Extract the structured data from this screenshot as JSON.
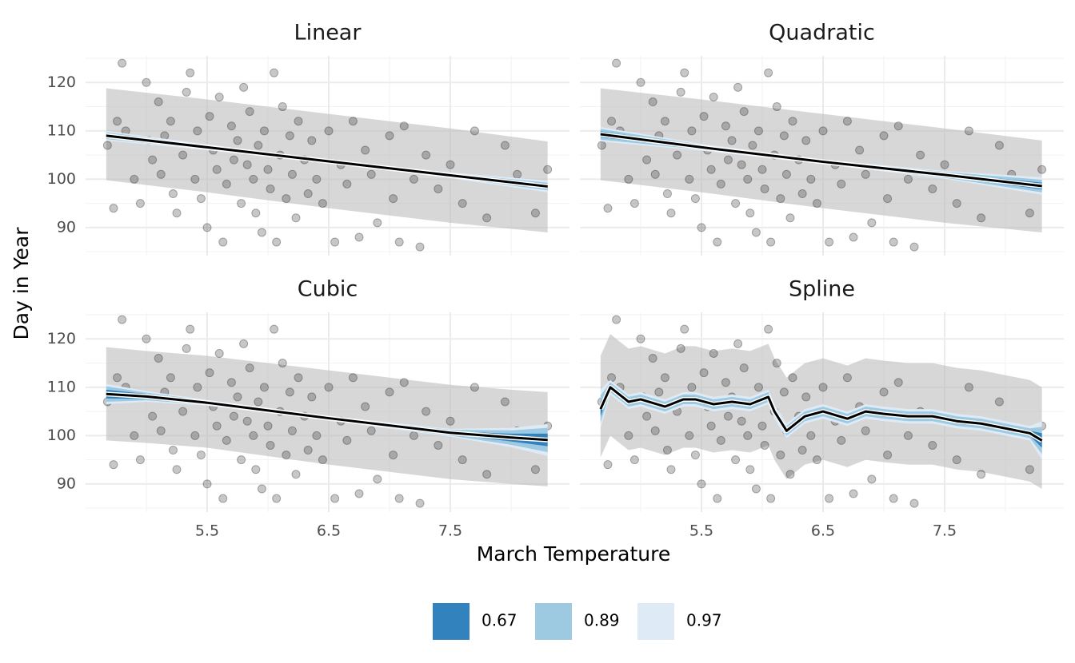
{
  "chart_data": {
    "type": "faceted-regression",
    "x_label": "March Temperature",
    "y_label": "Day in Year",
    "xlim": [
      4.5,
      8.48
    ],
    "ylim": [
      84.2,
      125.5
    ],
    "xticks": [
      5.5,
      6.5,
      7.5
    ],
    "yticks": [
      90,
      100,
      110,
      120
    ],
    "xminor": [
      5,
      6,
      7,
      8
    ],
    "yminor": [
      85,
      95,
      105,
      115,
      125
    ],
    "grid": true,
    "point_color": "#000000",
    "pred_color": "#bdbdbd",
    "line_color": "#000000",
    "bands": [
      {
        "name": "0.67",
        "color": "#3182bd"
      },
      {
        "name": "0.89",
        "color": "#9ecae1"
      },
      {
        "name": "0.97",
        "color": "#deebf7"
      }
    ],
    "points": {
      "x": [
        4.68,
        4.73,
        4.76,
        4.8,
        4.83,
        4.9,
        4.95,
        5.0,
        5.02,
        5.05,
        5.1,
        5.12,
        5.15,
        5.2,
        5.22,
        5.25,
        5.3,
        5.33,
        5.36,
        5.4,
        5.42,
        5.45,
        5.5,
        5.52,
        5.55,
        5.58,
        5.6,
        5.63,
        5.66,
        5.7,
        5.72,
        5.75,
        5.78,
        5.8,
        5.83,
        5.85,
        5.88,
        5.9,
        5.92,
        5.95,
        5.97,
        6.0,
        6.02,
        6.05,
        6.07,
        6.1,
        6.12,
        6.15,
        6.18,
        6.2,
        6.23,
        6.25,
        6.3,
        6.33,
        6.36,
        6.4,
        6.45,
        6.5,
        6.55,
        6.6,
        6.65,
        6.7,
        6.75,
        6.8,
        6.85,
        6.9,
        7.0,
        7.03,
        7.08,
        7.12,
        7.2,
        7.25,
        7.3,
        7.4,
        7.5,
        7.6,
        7.7,
        7.8,
        7.95,
        8.05,
        8.2,
        8.3
      ],
      "y": [
        107,
        94,
        112,
        124,
        110,
        100,
        95,
        120,
        108,
        104,
        116,
        101,
        109,
        112,
        97,
        93,
        105,
        118,
        122,
        100,
        110,
        96,
        90,
        113,
        106,
        102,
        117,
        87,
        99,
        111,
        104,
        108,
        95,
        119,
        103,
        114,
        100,
        93,
        107,
        89,
        110,
        102,
        98,
        122,
        87,
        105,
        115,
        96,
        109,
        101,
        92,
        112,
        104,
        97,
        108,
        100,
        95,
        110,
        87,
        103,
        99,
        112,
        88,
        106,
        101,
        91,
        109,
        96,
        87,
        111,
        100,
        86,
        105,
        98,
        103,
        95,
        110,
        92,
        107,
        101,
        93,
        102
      ]
    },
    "panels": [
      {
        "title": "Linear",
        "x": [
          4.67,
          5.5,
          6.5,
          7.5,
          8.3
        ],
        "fit": [
          109,
          106.6,
          103.7,
          100.8,
          98.5
        ],
        "pred_lower": [
          99.8,
          97.3,
          94,
          91,
          89
        ],
        "pred_upper": [
          118.8,
          116.5,
          113.5,
          110.5,
          107.8
        ],
        "ci": [
          {
            "lower": [
              108.6,
              106.4,
              103.5,
              100.6,
              98
            ],
            "upper": [
              109.4,
              106.8,
              103.9,
              101,
              99
            ]
          },
          {
            "lower": [
              108.3,
              106.2,
              103.4,
              100.4,
              97.7
            ],
            "upper": [
              109.7,
              107,
              104,
              101.2,
              99.3
            ]
          },
          {
            "lower": [
              108,
              106,
              103.3,
              100.2,
              97.3
            ],
            "upper": [
              110,
              107.2,
              104.1,
              101.4,
              99.7
            ]
          }
        ]
      },
      {
        "title": "Quadratic",
        "x": [
          4.67,
          5.5,
          6.5,
          7.5,
          8.3
        ],
        "fit": [
          109.3,
          106.6,
          103.6,
          100.9,
          98.6
        ],
        "pred_lower": [
          99.8,
          97.3,
          94,
          91,
          89
        ],
        "pred_upper": [
          118.8,
          116.5,
          113.5,
          110.5,
          108
        ],
        "ci": [
          {
            "lower": [
              108.7,
              106.3,
              103.4,
              100.6,
              97.9
            ],
            "upper": [
              109.9,
              106.9,
              103.8,
              101.2,
              99.3
            ]
          },
          {
            "lower": [
              108.2,
              106.1,
              103.2,
              100.3,
              97.3
            ],
            "upper": [
              110.4,
              107.1,
              104,
              101.5,
              99.9
            ]
          },
          {
            "lower": [
              107.8,
              105.9,
              103.1,
              100.1,
              96.8
            ],
            "upper": [
              110.8,
              107.3,
              104.1,
              101.7,
              100.4
            ]
          }
        ]
      },
      {
        "title": "Cubic",
        "x": [
          4.67,
          5.0,
          5.5,
          6.5,
          7.5,
          8.0,
          8.3
        ],
        "fit": [
          108.6,
          108.1,
          106.8,
          103.6,
          100.6,
          99.6,
          99.1
        ],
        "pred_lower": [
          99,
          98.5,
          97.5,
          94,
          91,
          90,
          89.5
        ],
        "pred_upper": [
          118.3,
          117.5,
          116.5,
          113.5,
          110.5,
          109.5,
          109
        ],
        "ci": [
          {
            "lower": [
              107.7,
              107.6,
              106.6,
              103.4,
              100.3,
              98.8,
              97.8
            ],
            "upper": [
              109.5,
              108.6,
              107,
              103.8,
              100.9,
              100.4,
              100.4
            ]
          },
          {
            "lower": [
              107,
              107.3,
              106.4,
              103.2,
              100,
              98.1,
              96.6
            ],
            "upper": [
              110.2,
              108.9,
              107.2,
              104,
              101.2,
              101.1,
              101.6
            ]
          },
          {
            "lower": [
              106.5,
              107,
              106.2,
              103.1,
              99.8,
              97.6,
              95.8
            ],
            "upper": [
              110.7,
              109.2,
              107.4,
              104.1,
              101.4,
              101.6,
              102.4
            ]
          }
        ]
      },
      {
        "title": "Spline",
        "x": [
          4.67,
          4.75,
          4.9,
          5.0,
          5.2,
          5.35,
          5.45,
          5.6,
          5.75,
          5.9,
          6.05,
          6.1,
          6.2,
          6.35,
          6.5,
          6.7,
          6.85,
          7.0,
          7.2,
          7.4,
          7.6,
          7.8,
          8.0,
          8.2,
          8.3
        ],
        "fit": [
          105.5,
          110,
          107,
          107.5,
          106,
          107.5,
          107.5,
          106.5,
          107,
          106.5,
          108,
          105,
          101,
          104,
          105,
          103.5,
          105,
          104.5,
          104,
          104,
          103,
          102.5,
          101.5,
          100.5,
          99
        ],
        "pred_lower": [
          95.5,
          100,
          97,
          97.5,
          96,
          97.5,
          97.5,
          96.5,
          97,
          96.5,
          98,
          95,
          91,
          94,
          95,
          93.5,
          95,
          94.5,
          94,
          94,
          93,
          92.5,
          91.5,
          90.5,
          89
        ],
        "pred_upper": [
          116.5,
          121,
          118,
          118.5,
          117,
          118.5,
          118.5,
          117.5,
          118,
          117.5,
          119,
          116,
          112,
          115,
          116,
          114.5,
          116,
          115.5,
          115,
          115,
          114,
          113.5,
          112.5,
          111.5,
          110
        ],
        "ci": [
          {
            "lower": [
              104,
              109.5,
              106.5,
              107,
              105.5,
              107,
              107,
              106,
              106.5,
              106,
              107.5,
              104.5,
              100.5,
              103.5,
              104.5,
              103,
              104.5,
              104,
              103.5,
              103.5,
              102.5,
              102,
              101,
              100,
              97.5
            ],
            "upper": [
              107,
              110.5,
              107.5,
              108,
              106.5,
              108,
              108,
              107,
              107.5,
              107,
              108.5,
              105.5,
              101.5,
              104.5,
              105.5,
              104,
              105.5,
              105,
              104.5,
              104.5,
              103.5,
              103,
              102,
              101,
              100.5
            ]
          },
          {
            "lower": [
              102.7,
              109,
              106,
              106.5,
              105,
              106.5,
              106.5,
              105.5,
              106,
              105.5,
              107,
              104,
              100,
              103,
              104,
              102.5,
              104,
              103.5,
              103,
              103,
              102,
              101.5,
              100.5,
              99.5,
              96.2
            ],
            "upper": [
              108.3,
              111,
              108,
              108.5,
              107,
              108.5,
              108.5,
              107.5,
              108,
              107.5,
              109,
              106,
              102,
              105,
              106,
              104.5,
              106,
              105.5,
              105,
              105,
              104,
              103.5,
              102.5,
              101.5,
              101.8
            ]
          },
          {
            "lower": [
              101.5,
              108.5,
              105.5,
              106,
              104.5,
              106,
              106,
              105,
              105.5,
              105,
              106.5,
              103.5,
              99.5,
              102.5,
              103.5,
              102,
              103.5,
              103,
              102.5,
              102.5,
              101.5,
              101,
              100,
              99,
              95
            ],
            "upper": [
              109.5,
              111.5,
              108.5,
              109,
              107.5,
              109,
              109,
              108,
              108.5,
              108,
              109.5,
              106.5,
              102.5,
              105.5,
              106.5,
              105,
              106.5,
              106,
              105.5,
              105.5,
              104.5,
              104,
              103,
              102,
              103
            ]
          }
        ]
      }
    ]
  }
}
